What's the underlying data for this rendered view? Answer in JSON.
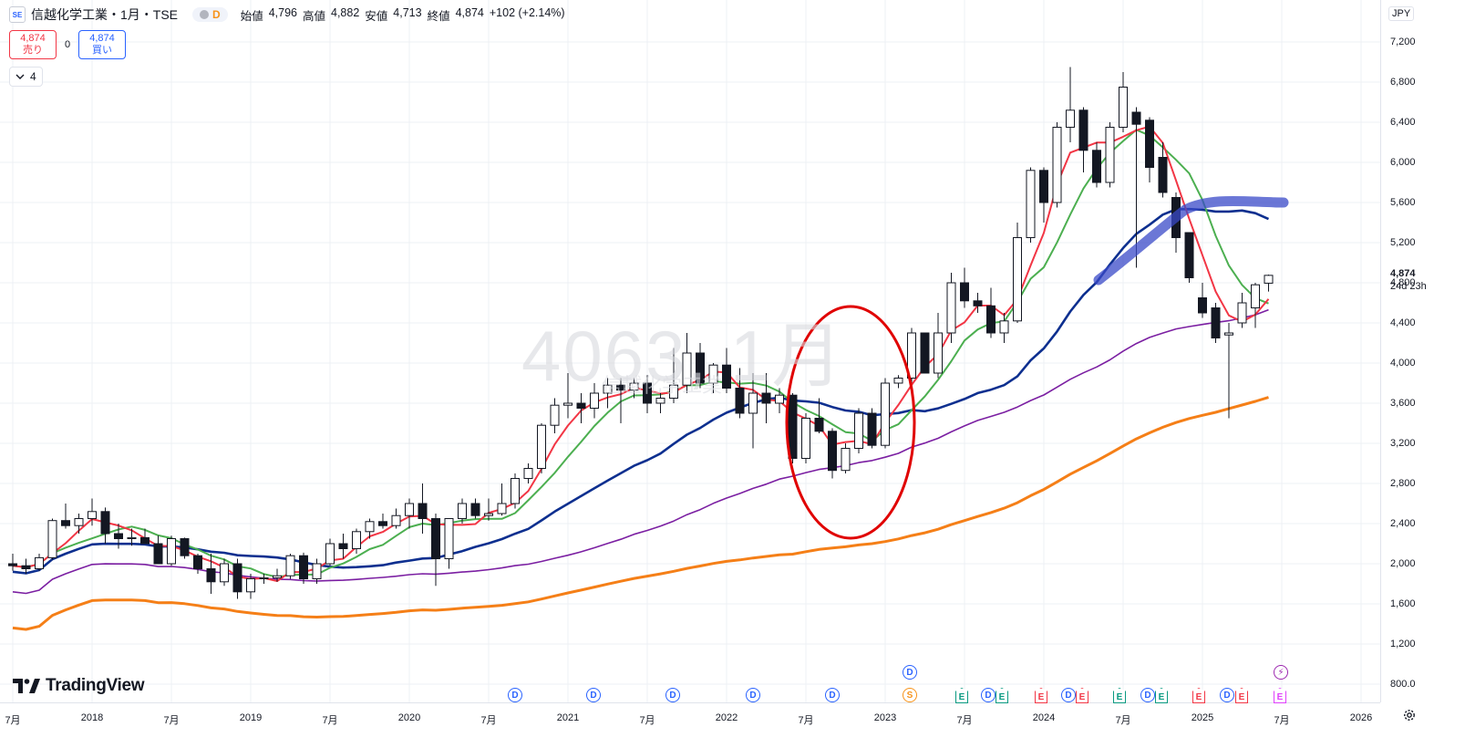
{
  "header": {
    "logo_text": "SE",
    "symbol_title": "信越化学工業・1月・TSE",
    "pill_label": "D",
    "ohlc": [
      {
        "label": "始値",
        "value": "4,796"
      },
      {
        "label": "高値",
        "value": "4,882"
      },
      {
        "label": "安値",
        "value": "4,713"
      },
      {
        "label": "終値",
        "value": "4,874"
      }
    ],
    "change": "+102 (+2.14%)"
  },
  "trade": {
    "sell_price": "4,874",
    "sell_label": "売り",
    "spread": "0",
    "buy_price": "4,874",
    "buy_label": "買い"
  },
  "indicators_toggle": {
    "count": "4"
  },
  "watermark": {
    "main": "4063, 1月",
    "sub": "信越化学工業"
  },
  "price_axis": {
    "currency": "JPY",
    "labels": [
      "7,200",
      "6,800",
      "6,400",
      "6,000",
      "5,600",
      "5,200",
      "4,800",
      "4,400",
      "4,000",
      "3,600",
      "3,200",
      "2,800",
      "2,400",
      "2,000",
      "1,600",
      "1,200",
      "800.0"
    ],
    "last_price": "4,874",
    "countdown": "24d 23h"
  },
  "time_axis": {
    "labels": [
      "7月",
      "2018",
      "7月",
      "2019",
      "7月",
      "2020",
      "7月",
      "2021",
      "7月",
      "2022",
      "7月",
      "2023",
      "7月",
      "2024",
      "7月",
      "2025",
      "7月",
      "2026"
    ]
  },
  "events": [
    {
      "letter": "D",
      "shape": "circle",
      "color": "#2962ff"
    },
    {
      "letter": "D",
      "shape": "circle",
      "color": "#2962ff"
    },
    {
      "letter": "D",
      "shape": "circle",
      "color": "#2962ff"
    },
    {
      "letter": "D",
      "shape": "circle",
      "color": "#2962ff"
    },
    {
      "letter": "D",
      "shape": "circle",
      "color": "#2962ff"
    },
    {
      "letter": "D",
      "shape": "circle",
      "color": "#2962ff"
    },
    {
      "letter": "S",
      "shape": "circle",
      "color": "#f7931a"
    },
    {
      "letter": "E",
      "shape": "flag",
      "color": "#089981"
    },
    {
      "letter": "D",
      "shape": "circle",
      "color": "#2962ff"
    },
    {
      "letter": "E",
      "shape": "flag",
      "color": "#089981"
    },
    {
      "letter": "E",
      "shape": "flag",
      "color": "#f23645"
    },
    {
      "letter": "D",
      "shape": "circle",
      "color": "#2962ff"
    },
    {
      "letter": "E",
      "shape": "flag",
      "color": "#f23645"
    },
    {
      "letter": "E",
      "shape": "flag",
      "color": "#089981"
    },
    {
      "letter": "D",
      "shape": "circle",
      "color": "#2962ff"
    },
    {
      "letter": "E",
      "shape": "flag",
      "color": "#089981"
    },
    {
      "letter": "E",
      "shape": "flag",
      "color": "#f23645"
    },
    {
      "letter": "D",
      "shape": "circle",
      "color": "#2962ff"
    },
    {
      "letter": "E",
      "shape": "flag",
      "color": "#f23645"
    },
    {
      "letter": "⚡",
      "shape": "circle",
      "color": "#9c27b0"
    },
    {
      "letter": "E",
      "shape": "flag",
      "color": "#e040fb"
    }
  ],
  "branding": {
    "name": "TradingView"
  },
  "colors": {
    "ma_red": "#f23645",
    "ma_green": "#4caf50",
    "ma_blue": "#0d2f8f",
    "ma_purple": "#7b1fa2",
    "ma_orange": "#f57f17",
    "annotation_red": "#e00000",
    "annotation_blue": "#3949c8"
  },
  "chart_data": {
    "type": "candlestick",
    "interval": "1月",
    "y_range": [
      800,
      7200
    ],
    "x_range": [
      "2017-07",
      "2026-01"
    ],
    "candles": [
      {
        "t": "2017-07",
        "o": 2000,
        "h": 2100,
        "l": 1930,
        "c": 1980
      },
      {
        "t": "2017-08",
        "o": 1980,
        "h": 2050,
        "l": 1900,
        "c": 1950
      },
      {
        "t": "2017-09",
        "o": 1950,
        "h": 2100,
        "l": 1930,
        "c": 2060
      },
      {
        "t": "2017-10",
        "o": 2060,
        "h": 2450,
        "l": 2040,
        "c": 2430
      },
      {
        "t": "2017-11",
        "o": 2430,
        "h": 2600,
        "l": 2350,
        "c": 2380
      },
      {
        "t": "2017-12",
        "o": 2380,
        "h": 2500,
        "l": 2300,
        "c": 2450
      },
      {
        "t": "2018-01",
        "o": 2450,
        "h": 2650,
        "l": 2380,
        "c": 2520
      },
      {
        "t": "2018-02",
        "o": 2520,
        "h": 2560,
        "l": 2200,
        "c": 2300
      },
      {
        "t": "2018-03",
        "o": 2300,
        "h": 2400,
        "l": 2150,
        "c": 2250
      },
      {
        "t": "2018-04",
        "o": 2250,
        "h": 2350,
        "l": 2180,
        "c": 2260
      },
      {
        "t": "2018-05",
        "o": 2260,
        "h": 2350,
        "l": 2200,
        "c": 2200
      },
      {
        "t": "2018-06",
        "o": 2200,
        "h": 2280,
        "l": 2000,
        "c": 2000
      },
      {
        "t": "2018-07",
        "o": 2000,
        "h": 2280,
        "l": 1980,
        "c": 2250
      },
      {
        "t": "2018-08",
        "o": 2250,
        "h": 2260,
        "l": 2050,
        "c": 2080
      },
      {
        "t": "2018-09",
        "o": 2080,
        "h": 2100,
        "l": 1900,
        "c": 1950
      },
      {
        "t": "2018-10",
        "o": 1950,
        "h": 2100,
        "l": 1700,
        "c": 1820
      },
      {
        "t": "2018-11",
        "o": 1820,
        "h": 2050,
        "l": 1780,
        "c": 2000
      },
      {
        "t": "2018-12",
        "o": 2000,
        "h": 2050,
        "l": 1650,
        "c": 1720
      },
      {
        "t": "2019-01",
        "o": 1720,
        "h": 1900,
        "l": 1650,
        "c": 1850
      },
      {
        "t": "2019-02",
        "o": 1850,
        "h": 1900,
        "l": 1800,
        "c": 1860
      },
      {
        "t": "2019-03",
        "o": 1860,
        "h": 1950,
        "l": 1820,
        "c": 1880
      },
      {
        "t": "2019-04",
        "o": 1880,
        "h": 2100,
        "l": 1850,
        "c": 2080
      },
      {
        "t": "2019-05",
        "o": 2080,
        "h": 2110,
        "l": 1800,
        "c": 1850
      },
      {
        "t": "2019-06",
        "o": 1850,
        "h": 2050,
        "l": 1800,
        "c": 2000
      },
      {
        "t": "2019-07",
        "o": 2000,
        "h": 2250,
        "l": 1980,
        "c": 2200
      },
      {
        "t": "2019-08",
        "o": 2200,
        "h": 2300,
        "l": 2050,
        "c": 2150
      },
      {
        "t": "2019-09",
        "o": 2150,
        "h": 2350,
        "l": 2100,
        "c": 2320
      },
      {
        "t": "2019-10",
        "o": 2320,
        "h": 2450,
        "l": 2250,
        "c": 2420
      },
      {
        "t": "2019-11",
        "o": 2420,
        "h": 2500,
        "l": 2350,
        "c": 2380
      },
      {
        "t": "2019-12",
        "o": 2380,
        "h": 2550,
        "l": 2350,
        "c": 2480
      },
      {
        "t": "2020-01",
        "o": 2480,
        "h": 2650,
        "l": 2350,
        "c": 2600
      },
      {
        "t": "2020-02",
        "o": 2600,
        "h": 2800,
        "l": 2300,
        "c": 2450
      },
      {
        "t": "2020-03",
        "o": 2450,
        "h": 2500,
        "l": 1780,
        "c": 2050
      },
      {
        "t": "2020-04",
        "o": 2050,
        "h": 2450,
        "l": 1950,
        "c": 2450
      },
      {
        "t": "2020-05",
        "o": 2450,
        "h": 2650,
        "l": 2400,
        "c": 2600
      },
      {
        "t": "2020-06",
        "o": 2600,
        "h": 2650,
        "l": 2450,
        "c": 2480
      },
      {
        "t": "2020-07",
        "o": 2480,
        "h": 2650,
        "l": 2430,
        "c": 2500
      },
      {
        "t": "2020-08",
        "o": 2500,
        "h": 2800,
        "l": 2480,
        "c": 2600
      },
      {
        "t": "2020-09",
        "o": 2600,
        "h": 2900,
        "l": 2550,
        "c": 2850
      },
      {
        "t": "2020-10",
        "o": 2850,
        "h": 3000,
        "l": 2800,
        "c": 2950
      },
      {
        "t": "2020-11",
        "o": 2950,
        "h": 3400,
        "l": 2900,
        "c": 3380
      },
      {
        "t": "2020-12",
        "o": 3380,
        "h": 3650,
        "l": 3300,
        "c": 3580
      },
      {
        "t": "2021-01",
        "o": 3580,
        "h": 3900,
        "l": 3450,
        "c": 3600
      },
      {
        "t": "2021-02",
        "o": 3600,
        "h": 3700,
        "l": 3400,
        "c": 3550
      },
      {
        "t": "2021-03",
        "o": 3550,
        "h": 3800,
        "l": 3450,
        "c": 3700
      },
      {
        "t": "2021-04",
        "o": 3700,
        "h": 3850,
        "l": 3550,
        "c": 3780
      },
      {
        "t": "2021-05",
        "o": 3780,
        "h": 3850,
        "l": 3400,
        "c": 3730
      },
      {
        "t": "2021-06",
        "o": 3730,
        "h": 3850,
        "l": 3650,
        "c": 3800
      },
      {
        "t": "2021-07",
        "o": 3800,
        "h": 3880,
        "l": 3500,
        "c": 3600
      },
      {
        "t": "2021-08",
        "o": 3600,
        "h": 3700,
        "l": 3500,
        "c": 3650
      },
      {
        "t": "2021-09",
        "o": 3650,
        "h": 4150,
        "l": 3600,
        "c": 3780
      },
      {
        "t": "2021-10",
        "o": 3780,
        "h": 4300,
        "l": 3700,
        "c": 4100
      },
      {
        "t": "2021-11",
        "o": 4100,
        "h": 4200,
        "l": 3750,
        "c": 3800
      },
      {
        "t": "2021-12",
        "o": 3800,
        "h": 4000,
        "l": 3700,
        "c": 3980
      },
      {
        "t": "2022-01",
        "o": 3980,
        "h": 4150,
        "l": 3700,
        "c": 3750
      },
      {
        "t": "2022-02",
        "o": 3750,
        "h": 3950,
        "l": 3450,
        "c": 3500
      },
      {
        "t": "2022-03",
        "o": 3500,
        "h": 3900,
        "l": 3150,
        "c": 3700
      },
      {
        "t": "2022-04",
        "o": 3700,
        "h": 3900,
        "l": 3400,
        "c": 3600
      },
      {
        "t": "2022-05",
        "o": 3600,
        "h": 3750,
        "l": 3500,
        "c": 3680
      },
      {
        "t": "2022-06",
        "o": 3680,
        "h": 3700,
        "l": 3000,
        "c": 3050
      },
      {
        "t": "2022-07",
        "o": 3050,
        "h": 3500,
        "l": 3000,
        "c": 3450
      },
      {
        "t": "2022-08",
        "o": 3450,
        "h": 3650,
        "l": 3300,
        "c": 3320
      },
      {
        "t": "2022-09",
        "o": 3320,
        "h": 3350,
        "l": 2850,
        "c": 2930
      },
      {
        "t": "2022-10",
        "o": 2930,
        "h": 3200,
        "l": 2900,
        "c": 3150
      },
      {
        "t": "2022-11",
        "o": 3150,
        "h": 3550,
        "l": 3100,
        "c": 3500
      },
      {
        "t": "2022-12",
        "o": 3500,
        "h": 3550,
        "l": 3150,
        "c": 3180
      },
      {
        "t": "2023-01",
        "o": 3180,
        "h": 3850,
        "l": 3150,
        "c": 3800
      },
      {
        "t": "2023-02",
        "o": 3800,
        "h": 3880,
        "l": 3750,
        "c": 3850
      },
      {
        "t": "2023-03",
        "o": 3850,
        "h": 4350,
        "l": 3800,
        "c": 4300
      },
      {
        "t": "2023-04",
        "o": 4300,
        "h": 4300,
        "l": 3900,
        "c": 3900
      },
      {
        "t": "2023-05",
        "o": 3900,
        "h": 4500,
        "l": 3850,
        "c": 4300
      },
      {
        "t": "2023-06",
        "o": 4300,
        "h": 4900,
        "l": 4200,
        "c": 4800
      },
      {
        "t": "2023-07",
        "o": 4800,
        "h": 4950,
        "l": 4550,
        "c": 4620
      },
      {
        "t": "2023-08",
        "o": 4620,
        "h": 4700,
        "l": 4500,
        "c": 4570
      },
      {
        "t": "2023-09",
        "o": 4570,
        "h": 4750,
        "l": 4250,
        "c": 4300
      },
      {
        "t": "2023-10",
        "o": 4300,
        "h": 4500,
        "l": 4200,
        "c": 4420
      },
      {
        "t": "2023-11",
        "o": 4420,
        "h": 5400,
        "l": 4400,
        "c": 5250
      },
      {
        "t": "2023-12",
        "o": 5250,
        "h": 5950,
        "l": 5200,
        "c": 5920
      },
      {
        "t": "2024-01",
        "o": 5920,
        "h": 5950,
        "l": 5400,
        "c": 5600
      },
      {
        "t": "2024-02",
        "o": 5600,
        "h": 6400,
        "l": 5550,
        "c": 6350
      },
      {
        "t": "2024-03",
        "o": 6350,
        "h": 6950,
        "l": 6200,
        "c": 6520
      },
      {
        "t": "2024-04",
        "o": 6520,
        "h": 6550,
        "l": 5900,
        "c": 6120
      },
      {
        "t": "2024-05",
        "o": 6120,
        "h": 6200,
        "l": 5750,
        "c": 5800
      },
      {
        "t": "2024-06",
        "o": 5800,
        "h": 6400,
        "l": 5750,
        "c": 6350
      },
      {
        "t": "2024-07",
        "o": 6350,
        "h": 6900,
        "l": 6300,
        "c": 6750
      },
      {
        "t": "2024-08",
        "o": 6500,
        "h": 6550,
        "l": 4950,
        "c": 6380
      },
      {
        "t": "2024-09",
        "o": 6420,
        "h": 6450,
        "l": 5800,
        "c": 5950
      },
      {
        "t": "2024-10",
        "o": 6050,
        "h": 6200,
        "l": 5650,
        "c": 5700
      },
      {
        "t": "2024-11",
        "o": 5650,
        "h": 5700,
        "l": 5100,
        "c": 5250
      },
      {
        "t": "2024-12",
        "o": 5300,
        "h": 5300,
        "l": 4800,
        "c": 4850
      },
      {
        "t": "2025-01",
        "o": 4650,
        "h": 4800,
        "l": 4450,
        "c": 4500
      },
      {
        "t": "2025-02",
        "o": 4550,
        "h": 4600,
        "l": 4200,
        "c": 4250
      },
      {
        "t": "2025-03",
        "o": 4280,
        "h": 4400,
        "l": 3450,
        "c": 4300
      },
      {
        "t": "2025-04",
        "o": 4400,
        "h": 4700,
        "l": 4350,
        "c": 4600
      },
      {
        "t": "2025-05",
        "o": 4550,
        "h": 4800,
        "l": 4350,
        "c": 4780
      },
      {
        "t": "2025-06",
        "o": 4796,
        "h": 4882,
        "l": 4713,
        "c": 4874
      }
    ]
  }
}
